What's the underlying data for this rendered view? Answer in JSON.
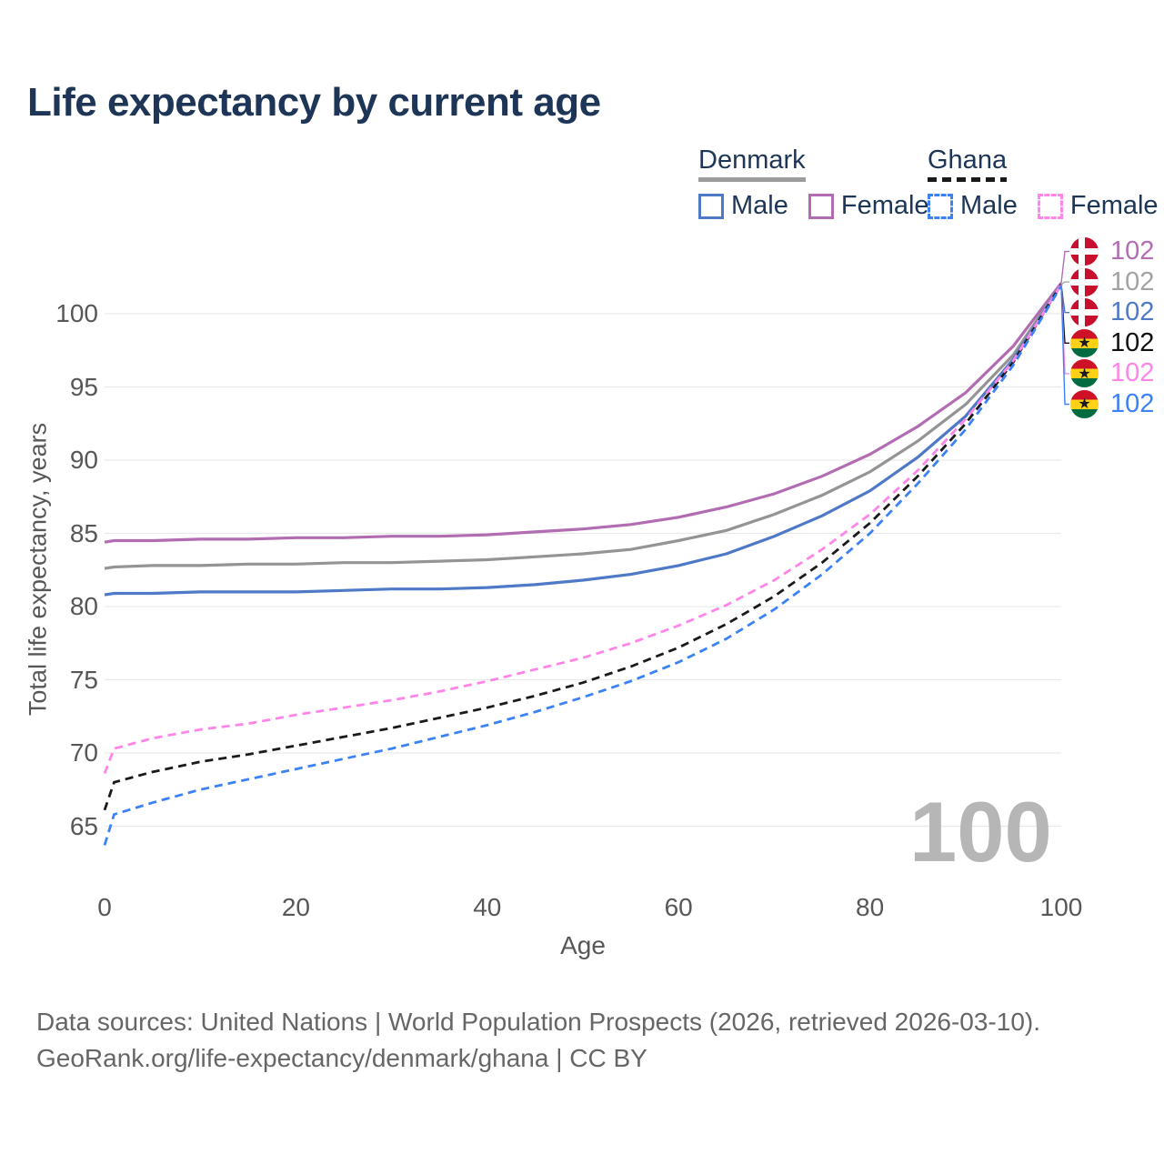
{
  "title": "Life expectancy by current age",
  "legend": {
    "denmark": {
      "title": "Denmark",
      "line_style": "solid",
      "underline_color": "#9c9c9c",
      "items": [
        {
          "label": "Male",
          "color": "#4e79c6"
        },
        {
          "label": "Female",
          "color": "#b26cb2"
        }
      ]
    },
    "ghana": {
      "title": "Ghana",
      "line_style": "dashed",
      "underline_color": "#1a1a1a",
      "items": [
        {
          "label": "Male",
          "color": "#3b82f6"
        },
        {
          "label": "Female",
          "color": "#ff85e8"
        }
      ]
    }
  },
  "chart_data": {
    "type": "line",
    "title": "Life expectancy by current age",
    "xlabel": "Age",
    "ylabel": "Total life expectancy, years",
    "xticks": [
      0,
      20,
      40,
      60,
      80,
      100
    ],
    "yticks": [
      65,
      70,
      75,
      80,
      85,
      90,
      95,
      100
    ],
    "xlim": [
      0,
      100
    ],
    "ylim": [
      62.5,
      103.5
    ],
    "grid": "horizontal",
    "legend_position": "top-right",
    "watermark": "100",
    "ages": [
      0,
      1,
      5,
      10,
      15,
      20,
      25,
      30,
      35,
      40,
      45,
      50,
      55,
      60,
      65,
      70,
      75,
      80,
      85,
      90,
      95,
      100
    ],
    "series": [
      {
        "name": "Denmark Female",
        "color": "#b26cb2",
        "dashed": false,
        "values": [
          84.4,
          84.5,
          84.5,
          84.6,
          84.6,
          84.7,
          84.7,
          84.8,
          84.8,
          84.9,
          85.1,
          85.3,
          85.6,
          86.1,
          86.8,
          87.7,
          88.9,
          90.4,
          92.3,
          94.6,
          97.8,
          102.1
        ]
      },
      {
        "name": "Denmark Both sexes",
        "color": "#949494",
        "dashed": false,
        "values": [
          82.6,
          82.7,
          82.8,
          82.8,
          82.9,
          82.9,
          83.0,
          83.0,
          83.1,
          83.2,
          83.4,
          83.6,
          83.9,
          84.5,
          85.2,
          86.3,
          87.6,
          89.2,
          91.3,
          93.8,
          97.2,
          102.0
        ]
      },
      {
        "name": "Denmark Male",
        "color": "#4e79c6",
        "dashed": false,
        "values": [
          80.8,
          80.9,
          80.9,
          81.0,
          81.0,
          81.0,
          81.1,
          81.2,
          81.2,
          81.3,
          81.5,
          81.8,
          82.2,
          82.8,
          83.6,
          84.8,
          86.2,
          87.9,
          90.2,
          93.0,
          96.9,
          102.0
        ]
      },
      {
        "name": "Ghana Both sexes",
        "color": "#1a1a1a",
        "dashed": true,
        "values": [
          66.1,
          68.0,
          68.7,
          69.4,
          69.9,
          70.5,
          71.1,
          71.7,
          72.4,
          73.1,
          73.9,
          74.8,
          75.9,
          77.2,
          78.8,
          80.7,
          83.0,
          85.7,
          88.9,
          92.5,
          96.7,
          102.0
        ]
      },
      {
        "name": "Ghana Female",
        "color": "#ff85e8",
        "dashed": true,
        "values": [
          68.6,
          70.3,
          71.0,
          71.6,
          72.0,
          72.6,
          73.1,
          73.6,
          74.2,
          74.9,
          75.7,
          76.5,
          77.5,
          78.7,
          80.1,
          81.8,
          83.9,
          86.3,
          89.3,
          92.8,
          96.8,
          102.0
        ]
      },
      {
        "name": "Ghana Male",
        "color": "#3b82f6",
        "dashed": true,
        "values": [
          63.7,
          65.8,
          66.6,
          67.5,
          68.2,
          68.9,
          69.6,
          70.3,
          71.1,
          71.9,
          72.8,
          73.8,
          74.9,
          76.2,
          77.8,
          79.8,
          82.2,
          85.0,
          88.4,
          92.1,
          96.5,
          101.9
        ]
      }
    ]
  },
  "endpoints": [
    {
      "flag": "denmark",
      "series": "Denmark Female",
      "value": "102",
      "color": "#b46cb4"
    },
    {
      "flag": "denmark",
      "series": "Denmark Both sexes",
      "value": "102",
      "color": "#a3a3a3"
    },
    {
      "flag": "denmark",
      "series": "Denmark Male",
      "value": "102",
      "color": "#4e79c6"
    },
    {
      "flag": "ghana",
      "series": "Ghana Both sexes",
      "value": "102",
      "color": "#111111"
    },
    {
      "flag": "ghana",
      "series": "Ghana Female",
      "value": "102",
      "color": "#ff85e8"
    },
    {
      "flag": "ghana",
      "series": "Ghana Male",
      "value": "102",
      "color": "#3b82f6"
    }
  ],
  "footer": {
    "line1": "Data sources: United Nations | World Population Prospects (2026, retrieved 2026-03-10).",
    "line2": "GeoRank.org/life-expectancy/denmark/ghana | CC BY"
  }
}
